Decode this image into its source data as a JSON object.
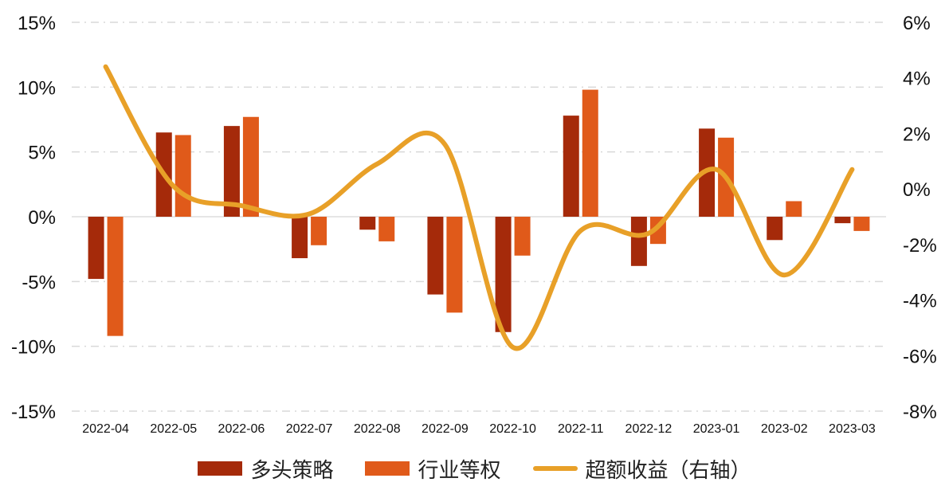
{
  "chart_data": {
    "type": "bar+line",
    "categories": [
      "2022-04",
      "2022-05",
      "2022-06",
      "2022-07",
      "2022-08",
      "2022-09",
      "2022-10",
      "2022-11",
      "2022-12",
      "2023-01",
      "2023-02",
      "2023-03"
    ],
    "series": [
      {
        "name": "多头策略",
        "type": "bar",
        "axis": "left",
        "color": "#a52a0a",
        "values": [
          -4.8,
          6.5,
          7.0,
          -3.2,
          -1.0,
          -6.0,
          -8.9,
          7.8,
          -3.8,
          6.8,
          -1.8,
          -0.5
        ]
      },
      {
        "name": "行业等权",
        "type": "bar",
        "axis": "left",
        "color": "#e05a1a",
        "values": [
          -9.2,
          6.3,
          7.7,
          -2.2,
          -1.9,
          -7.4,
          -3.0,
          9.8,
          -2.1,
          6.1,
          1.2,
          -1.1
        ]
      },
      {
        "name": "超额收益（右轴）",
        "type": "line",
        "axis": "right",
        "color": "#e8a028",
        "values": [
          4.4,
          0.1,
          -0.6,
          -0.9,
          0.9,
          1.6,
          -5.7,
          -1.5,
          -1.6,
          0.7,
          -3.1,
          0.7
        ]
      }
    ],
    "y_left": {
      "min": -15,
      "max": 15,
      "step": 5,
      "ticks": [
        "15%",
        "10%",
        "5%",
        "0%",
        "-5%",
        "-10%",
        "-15%"
      ]
    },
    "y_right": {
      "min": -8,
      "max": 6,
      "step": 2,
      "ticks": [
        "6%",
        "4%",
        "2%",
        "0%",
        "-2%",
        "-4%",
        "-6%",
        "-8%"
      ]
    },
    "grid": true,
    "legend_position": "bottom"
  },
  "legend": [
    {
      "label": "多头策略",
      "color": "#a52a0a",
      "kind": "bar"
    },
    {
      "label": "行业等权",
      "color": "#e05a1a",
      "kind": "bar"
    },
    {
      "label": "超额收益（右轴）",
      "color": "#e8a028",
      "kind": "line"
    }
  ]
}
